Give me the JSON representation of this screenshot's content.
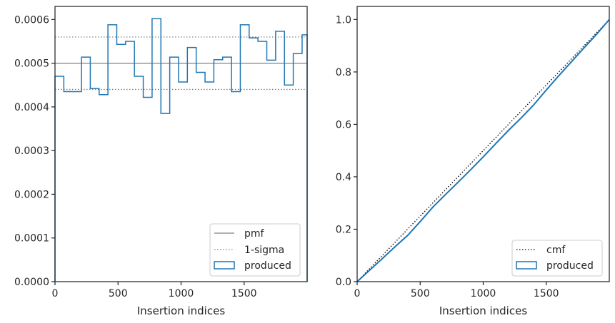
{
  "chart_data": [
    {
      "type": "histogram",
      "xlabel": "Insertion indices",
      "ylabel": "",
      "xlim": [
        0,
        2000
      ],
      "ylim": [
        0,
        0.00063
      ],
      "xticks": [
        0,
        500,
        1000,
        1500
      ],
      "xtick_labels": [
        "0",
        "500",
        "1000",
        "1500"
      ],
      "yticks": [
        0,
        0.0001,
        0.0002,
        0.0003,
        0.0004,
        0.0005,
        0.0006
      ],
      "ytick_labels": [
        "0.0000",
        "0.0001",
        "0.0002",
        "0.0003",
        "0.0004",
        "0.0005",
        "0.0006"
      ],
      "grid": false,
      "legend_location": "lower-right",
      "reference_lines": [
        {
          "name": "pmf",
          "y": 0.0005,
          "style": "solid",
          "color": "#808080"
        },
        {
          "name": "1-sigma",
          "y": 0.00056,
          "style": "dotted",
          "color": "#808080"
        },
        {
          "name": "1-sigma",
          "y": 0.00044,
          "style": "dotted",
          "color": "#808080"
        }
      ],
      "series": [
        {
          "name": "produced",
          "style": "step",
          "color": "#1f77b4",
          "bin_edges": [
            0,
            70,
            140,
            210,
            280,
            350,
            420,
            490,
            560,
            630,
            700,
            770,
            840,
            910,
            980,
            1050,
            1120,
            1190,
            1260,
            1330,
            1400,
            1470,
            1540,
            1610,
            1680,
            1750,
            1820,
            1890,
            1960,
            2000
          ],
          "values": [
            0.00047,
            0.000435,
            0.000435,
            0.000514,
            0.000442,
            0.000428,
            0.000588,
            0.000543,
            0.00055,
            0.00047,
            0.000422,
            0.000602,
            0.000385,
            0.000514,
            0.000457,
            0.000536,
            0.000479,
            0.000457,
            0.000508,
            0.000514,
            0.000435,
            0.000588,
            0.000558,
            0.00055,
            0.000507,
            0.000573,
            0.00045,
            0.000522,
            0.000565
          ]
        }
      ],
      "legend": [
        "pmf",
        "1-sigma",
        "produced"
      ]
    },
    {
      "type": "line",
      "xlabel": "Insertion indices",
      "ylabel": "",
      "xlim": [
        0,
        2000
      ],
      "ylim": [
        0,
        1.05
      ],
      "xticks": [
        0,
        500,
        1000,
        1500
      ],
      "xtick_labels": [
        "0",
        "500",
        "1000",
        "1500"
      ],
      "yticks": [
        0,
        0.2,
        0.4,
        0.6,
        0.8,
        1.0
      ],
      "ytick_labels": [
        "0.0",
        "0.2",
        "0.4",
        "0.6",
        "0.8",
        "1.0"
      ],
      "grid": false,
      "legend_location": "lower-right",
      "series": [
        {
          "name": "cmf",
          "style": "dotted",
          "color": "#000000",
          "x": [
            0,
            2000
          ],
          "y": [
            0,
            1.0
          ]
        },
        {
          "name": "produced",
          "style": "step",
          "color": "#1f77b4",
          "x": [
            0,
            100,
            200,
            300,
            400,
            500,
            600,
            700,
            800,
            900,
            1000,
            1100,
            1200,
            1300,
            1400,
            1500,
            1600,
            1700,
            1800,
            1900,
            2000
          ],
          "y": [
            0,
            0.044,
            0.088,
            0.133,
            0.176,
            0.229,
            0.284,
            0.332,
            0.379,
            0.427,
            0.476,
            0.527,
            0.577,
            0.624,
            0.674,
            0.731,
            0.786,
            0.839,
            0.892,
            0.944,
            1.0
          ]
        }
      ],
      "legend": [
        "cmf",
        "produced"
      ]
    }
  ]
}
